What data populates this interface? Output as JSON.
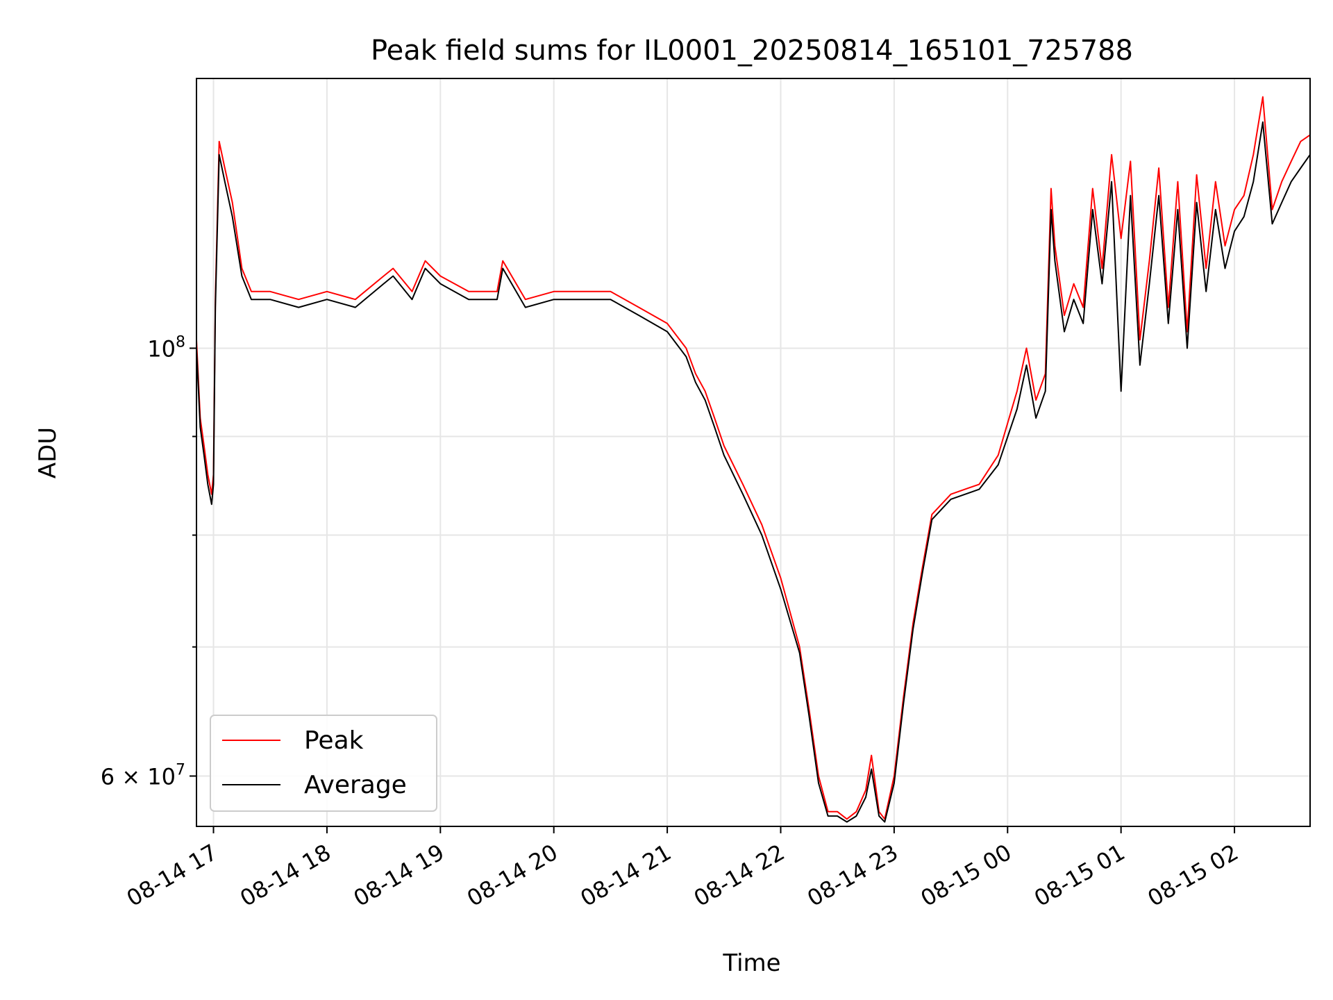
{
  "colors": {
    "peak": "#ff0000",
    "average": "#000000",
    "grid": "#e6e6e6"
  },
  "chart_data": {
    "type": "line",
    "title": "Peak field sums for IL0001_20250814_165101_725788",
    "xlabel": "Time",
    "ylabel": "ADU",
    "xscale": "time",
    "yscale": "log",
    "xlim": [
      "2025-08-14 16:51",
      "2025-08-15 02:40"
    ],
    "ylim": [
      56500000,
      138000000
    ],
    "grid": true,
    "legend_position": "lower-left",
    "x_ticks": [
      {
        "value": "2025-08-14 17:00",
        "label": "08-14 17"
      },
      {
        "value": "2025-08-14 18:00",
        "label": "08-14 18"
      },
      {
        "value": "2025-08-14 19:00",
        "label": "08-14 19"
      },
      {
        "value": "2025-08-14 20:00",
        "label": "08-14 20"
      },
      {
        "value": "2025-08-14 21:00",
        "label": "08-14 21"
      },
      {
        "value": "2025-08-14 22:00",
        "label": "08-14 22"
      },
      {
        "value": "2025-08-14 23:00",
        "label": "08-14 23"
      },
      {
        "value": "2025-08-15 00:00",
        "label": "08-15 00"
      },
      {
        "value": "2025-08-15 01:00",
        "label": "08-15 01"
      },
      {
        "value": "2025-08-15 02:00",
        "label": "08-15 02"
      }
    ],
    "y_major_ticks": [
      {
        "value": 100000000,
        "base": "10",
        "exp": "8",
        "mantissa": ""
      },
      {
        "value": 60000000,
        "base": "10",
        "exp": "7",
        "mantissa": "6"
      }
    ],
    "y_minor_ticks": [
      70000000,
      80000000,
      90000000
    ],
    "series": [
      {
        "name": "Peak",
        "color": "#ff0000",
        "x": [
          "2025-08-14 16:51",
          "2025-08-14 16:53",
          "2025-08-14 16:55",
          "2025-08-14 16:57",
          "2025-08-14 16:59",
          "2025-08-14 17:00",
          "2025-08-14 17:01",
          "2025-08-14 17:03",
          "2025-08-14 17:06",
          "2025-08-14 17:10",
          "2025-08-14 17:15",
          "2025-08-14 17:20",
          "2025-08-14 17:30",
          "2025-08-14 17:45",
          "2025-08-14 18:00",
          "2025-08-14 18:15",
          "2025-08-14 18:30",
          "2025-08-14 18:35",
          "2025-08-14 18:45",
          "2025-08-14 18:52",
          "2025-08-14 19:00",
          "2025-08-14 19:15",
          "2025-08-14 19:30",
          "2025-08-14 19:33",
          "2025-08-14 19:45",
          "2025-08-14 20:00",
          "2025-08-14 20:15",
          "2025-08-14 20:30",
          "2025-08-14 20:45",
          "2025-08-14 21:00",
          "2025-08-14 21:10",
          "2025-08-14 21:15",
          "2025-08-14 21:20",
          "2025-08-14 21:25",
          "2025-08-14 21:30",
          "2025-08-14 21:40",
          "2025-08-14 21:50",
          "2025-08-14 22:00",
          "2025-08-14 22:10",
          "2025-08-14 22:15",
          "2025-08-14 22:20",
          "2025-08-14 22:25",
          "2025-08-14 22:30",
          "2025-08-14 22:35",
          "2025-08-14 22:40",
          "2025-08-14 22:45",
          "2025-08-14 22:48",
          "2025-08-14 22:52",
          "2025-08-14 22:55",
          "2025-08-14 23:00",
          "2025-08-14 23:05",
          "2025-08-14 23:10",
          "2025-08-14 23:15",
          "2025-08-14 23:20",
          "2025-08-14 23:30",
          "2025-08-14 23:45",
          "2025-08-14 23:55",
          "2025-08-15 00:05",
          "2025-08-15 00:10",
          "2025-08-15 00:15",
          "2025-08-15 00:20",
          "2025-08-15 00:23",
          "2025-08-15 00:25",
          "2025-08-15 00:30",
          "2025-08-15 00:35",
          "2025-08-15 00:40",
          "2025-08-15 00:45",
          "2025-08-15 00:50",
          "2025-08-15 00:55",
          "2025-08-15 01:00",
          "2025-08-15 01:05",
          "2025-08-15 01:10",
          "2025-08-15 01:15",
          "2025-08-15 01:20",
          "2025-08-15 01:25",
          "2025-08-15 01:30",
          "2025-08-15 01:35",
          "2025-08-15 01:40",
          "2025-08-15 01:45",
          "2025-08-15 01:50",
          "2025-08-15 01:55",
          "2025-08-15 02:00",
          "2025-08-15 02:05",
          "2025-08-15 02:10",
          "2025-08-15 02:15",
          "2025-08-15 02:20",
          "2025-08-15 02:25",
          "2025-08-15 02:30",
          "2025-08-15 02:35",
          "2025-08-15 02:40"
        ],
        "values": [
          101000000,
          92000000,
          89000000,
          86000000,
          84000000,
          86000000,
          106000000,
          128000000,
          124000000,
          119000000,
          110000000,
          107000000,
          107000000,
          106000000,
          107000000,
          106000000,
          109000000,
          110000000,
          107000000,
          111000000,
          109000000,
          107000000,
          107000000,
          111000000,
          106000000,
          107000000,
          107000000,
          107000000,
          105000000,
          103000000,
          100000000,
          97000000,
          95000000,
          92000000,
          89000000,
          85000000,
          81000000,
          76000000,
          70000000,
          65000000,
          60000000,
          57500000,
          57500000,
          57000000,
          57500000,
          59000000,
          61500000,
          57500000,
          57000000,
          60000000,
          66000000,
          72000000,
          77000000,
          82000000,
          84000000,
          85000000,
          88000000,
          95000000,
          100000000,
          94000000,
          97000000,
          121000000,
          113000000,
          104000000,
          108000000,
          105000000,
          121000000,
          110000000,
          126000000,
          114000000,
          125000000,
          101000000,
          111000000,
          124000000,
          105000000,
          122000000,
          102000000,
          123000000,
          110000000,
          122000000,
          113000000,
          118000000,
          120000000,
          126000000,
          135000000,
          118000000,
          122000000,
          125000000,
          128000000,
          129000000
        ]
      },
      {
        "name": "Average",
        "color": "#000000",
        "x": [
          "2025-08-14 16:51",
          "2025-08-14 16:53",
          "2025-08-14 16:55",
          "2025-08-14 16:57",
          "2025-08-14 16:59",
          "2025-08-14 17:00",
          "2025-08-14 17:01",
          "2025-08-14 17:03",
          "2025-08-14 17:06",
          "2025-08-14 17:10",
          "2025-08-14 17:15",
          "2025-08-14 17:20",
          "2025-08-14 17:30",
          "2025-08-14 17:45",
          "2025-08-14 18:00",
          "2025-08-14 18:15",
          "2025-08-14 18:30",
          "2025-08-14 18:35",
          "2025-08-14 18:45",
          "2025-08-14 18:52",
          "2025-08-14 19:00",
          "2025-08-14 19:15",
          "2025-08-14 19:30",
          "2025-08-14 19:33",
          "2025-08-14 19:45",
          "2025-08-14 20:00",
          "2025-08-14 20:15",
          "2025-08-14 20:30",
          "2025-08-14 20:45",
          "2025-08-14 21:00",
          "2025-08-14 21:10",
          "2025-08-14 21:15",
          "2025-08-14 21:20",
          "2025-08-14 21:25",
          "2025-08-14 21:30",
          "2025-08-14 21:40",
          "2025-08-14 21:50",
          "2025-08-14 22:00",
          "2025-08-14 22:10",
          "2025-08-14 22:15",
          "2025-08-14 22:20",
          "2025-08-14 22:25",
          "2025-08-14 22:30",
          "2025-08-14 22:35",
          "2025-08-14 22:40",
          "2025-08-14 22:45",
          "2025-08-14 22:48",
          "2025-08-14 22:52",
          "2025-08-14 22:55",
          "2025-08-14 23:00",
          "2025-08-14 23:05",
          "2025-08-14 23:10",
          "2025-08-14 23:15",
          "2025-08-14 23:20",
          "2025-08-14 23:30",
          "2025-08-14 23:45",
          "2025-08-14 23:55",
          "2025-08-15 00:05",
          "2025-08-15 00:10",
          "2025-08-15 00:15",
          "2025-08-15 00:20",
          "2025-08-15 00:23",
          "2025-08-15 00:25",
          "2025-08-15 00:30",
          "2025-08-15 00:35",
          "2025-08-15 00:40",
          "2025-08-15 00:45",
          "2025-08-15 00:50",
          "2025-08-15 00:55",
          "2025-08-15 01:00",
          "2025-08-15 01:05",
          "2025-08-15 01:10",
          "2025-08-15 01:15",
          "2025-08-15 01:20",
          "2025-08-15 01:25",
          "2025-08-15 01:30",
          "2025-08-15 01:35",
          "2025-08-15 01:40",
          "2025-08-15 01:45",
          "2025-08-15 01:50",
          "2025-08-15 01:55",
          "2025-08-15 02:00",
          "2025-08-15 02:05",
          "2025-08-15 02:10",
          "2025-08-15 02:15",
          "2025-08-15 02:20",
          "2025-08-15 02:25",
          "2025-08-15 02:30",
          "2025-08-15 02:35",
          "2025-08-15 02:40"
        ],
        "values": [
          100000000,
          91000000,
          88000000,
          85000000,
          83000000,
          85000000,
          105000000,
          126000000,
          122000000,
          117000000,
          109000000,
          106000000,
          106000000,
          105000000,
          106000000,
          105000000,
          108000000,
          109000000,
          106000000,
          110000000,
          108000000,
          106000000,
          106000000,
          110000000,
          105000000,
          106000000,
          106000000,
          106000000,
          104000000,
          102000000,
          99000000,
          96000000,
          94000000,
          91000000,
          88000000,
          84000000,
          80000000,
          75000000,
          69500000,
          64500000,
          59500000,
          57200000,
          57200000,
          56800000,
          57200000,
          58500000,
          60500000,
          57200000,
          56800000,
          59500000,
          65500000,
          71500000,
          76500000,
          81500000,
          83500000,
          84500000,
          87000000,
          93000000,
          98000000,
          92000000,
          95000000,
          118000000,
          111000000,
          102000000,
          106000000,
          103000000,
          118000000,
          108000000,
          122000000,
          95000000,
          120000000,
          98000000,
          108000000,
          120000000,
          103000000,
          118000000,
          100000000,
          119000000,
          107000000,
          118000000,
          110000000,
          115000000,
          117000000,
          122000000,
          131000000,
          116000000,
          119000000,
          122000000,
          124000000,
          126000000
        ]
      }
    ]
  }
}
